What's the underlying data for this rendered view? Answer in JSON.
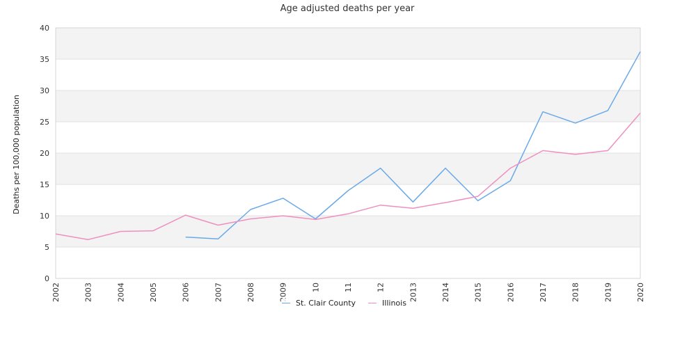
{
  "chart_data": {
    "type": "line",
    "title": "Age adjusted deaths per year",
    "xlabel": "",
    "ylabel": "Deaths per 100,000 population",
    "ylim": [
      0,
      40
    ],
    "yticks": [
      "0",
      "5",
      "10",
      "15",
      "20",
      "25",
      "30",
      "35",
      "40"
    ],
    "x": [
      "2002",
      "2003",
      "2004",
      "2005",
      "2006",
      "2007",
      "2008",
      "2009",
      "2010",
      "2011",
      "2012",
      "2013",
      "2014",
      "2015",
      "2016",
      "2017",
      "2018",
      "2019",
      "2020"
    ],
    "xtick_labels": [
      "2002",
      "2003",
      "2004",
      "2005",
      "2006",
      "2007",
      "2008",
      "2009",
      "10",
      "11",
      "12",
      "2013",
      "2014",
      "2015",
      "2016",
      "2017",
      "2018",
      "2019",
      "2020"
    ],
    "grid": "horizontal-bands",
    "legend_position": "bottom-center",
    "series": [
      {
        "name": "St. Clair County",
        "color": "#6aa9e8",
        "values": [
          null,
          null,
          null,
          null,
          6.6,
          6.3,
          11.0,
          12.8,
          9.5,
          14.0,
          17.6,
          12.2,
          17.6,
          12.4,
          15.6,
          26.6,
          24.8,
          26.8,
          36.2
        ]
      },
      {
        "name": "Illinois",
        "color": "#ee8fc0",
        "values": [
          7.1,
          6.2,
          7.5,
          7.6,
          10.1,
          8.5,
          9.5,
          10.0,
          9.4,
          10.3,
          11.7,
          11.2,
          12.1,
          13.1,
          17.6,
          20.4,
          19.8,
          20.4,
          26.4
        ]
      }
    ]
  }
}
